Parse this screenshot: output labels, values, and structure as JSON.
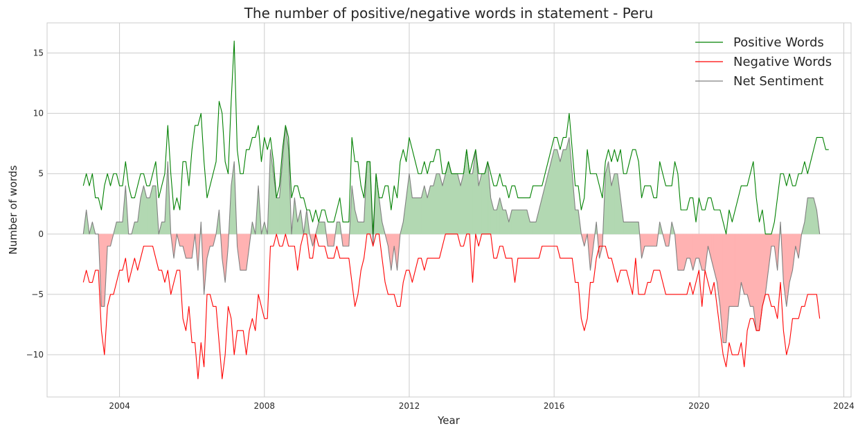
{
  "chart_data": {
    "type": "line",
    "title": "The number of positive/negative words in statement - Peru",
    "xlabel": "Year",
    "ylabel": "Number of words",
    "xlim": [
      2002.0,
      2024.2
    ],
    "ylim": [
      -13.5,
      17.5
    ],
    "x_ticks": [
      2004,
      2008,
      2012,
      2016,
      2020,
      2024
    ],
    "y_ticks": [
      -10,
      -5,
      0,
      5,
      10,
      15
    ],
    "y_tick_labels": [
      "−10",
      "−5",
      "0",
      "5",
      "10",
      "15"
    ],
    "grid": true,
    "legend_position": "top-right",
    "colors": {
      "positive": "#008000",
      "negative": "#ff0000",
      "net": "#808080",
      "fill_positive": "#b2d8b2",
      "fill_negative": "#ffb2b2"
    },
    "x_start": 2003.0,
    "x_step": 0.0833333,
    "series": [
      {
        "name": "Positive Words",
        "color": "#008000",
        "values": [
          4,
          5,
          4,
          5,
          3,
          3,
          2,
          4,
          5,
          4,
          5,
          5,
          4,
          4,
          6,
          4,
          3,
          3,
          4,
          5,
          5,
          4,
          4,
          5,
          6,
          3,
          4,
          5,
          9,
          5,
          2,
          3,
          2,
          6,
          6,
          4,
          7,
          9,
          9,
          10,
          6,
          3,
          4,
          5,
          6,
          11,
          10,
          6,
          5,
          11,
          16,
          7,
          5,
          5,
          7,
          7,
          8,
          8,
          9,
          6,
          8,
          7,
          8,
          6,
          3,
          4,
          7,
          9,
          8,
          3,
          4,
          4,
          3,
          3,
          2,
          2,
          1,
          2,
          1,
          2,
          2,
          1,
          1,
          1,
          2,
          3,
          1,
          1,
          1,
          8,
          6,
          6,
          4,
          3,
          6,
          6,
          0,
          5,
          3,
          3,
          4,
          4,
          2,
          4,
          3,
          6,
          7,
          6,
          8,
          7,
          6,
          5,
          5,
          6,
          5,
          6,
          6,
          7,
          7,
          5,
          5,
          6,
          5,
          5,
          5,
          5,
          5,
          7,
          5,
          6,
          7,
          5,
          5,
          5,
          6,
          5,
          4,
          4,
          5,
          4,
          4,
          3,
          4,
          4,
          3,
          3,
          3,
          3,
          3,
          4,
          4,
          4,
          4,
          5,
          6,
          7,
          8,
          8,
          7,
          8,
          8,
          10,
          7,
          4,
          4,
          2,
          3,
          7,
          5,
          5,
          5,
          4,
          3,
          6,
          7,
          6,
          7,
          6,
          7,
          5,
          5,
          6,
          7,
          7,
          6,
          3,
          4,
          4,
          4,
          3,
          3,
          6,
          5,
          4,
          4,
          4,
          6,
          5,
          2,
          2,
          2,
          3,
          3,
          1,
          3,
          2,
          2,
          3,
          3,
          2,
          2,
          2,
          1,
          0,
          2,
          1,
          2,
          3,
          4,
          4,
          4,
          5,
          6,
          3,
          1,
          2,
          0,
          0,
          0,
          1,
          3,
          5,
          5,
          4,
          5,
          4,
          4,
          5,
          5,
          6,
          5,
          6,
          7,
          8,
          8,
          8,
          7,
          7
        ]
      },
      {
        "name": "Negative Words",
        "color": "#ff0000",
        "values": [
          -4,
          -3,
          -4,
          -4,
          -3,
          -3,
          -8,
          -10,
          -6,
          -5,
          -5,
          -4,
          -3,
          -3,
          -2,
          -4,
          -3,
          -2,
          -3,
          -2,
          -1,
          -1,
          -1,
          -1,
          -2,
          -3,
          -3,
          -4,
          -3,
          -5,
          -4,
          -3,
          -3,
          -7,
          -8,
          -6,
          -9,
          -9,
          -12,
          -9,
          -11,
          -5,
          -5,
          -6,
          -6,
          -9,
          -12,
          -10,
          -6,
          -7,
          -10,
          -8,
          -8,
          -8,
          -10,
          -8,
          -7,
          -8,
          -5,
          -6,
          -7,
          -7,
          -1,
          -1,
          0,
          -1,
          -1,
          0,
          -1,
          -1,
          -1,
          -3,
          -1,
          0,
          0,
          -2,
          -2,
          0,
          -1,
          -1,
          -1,
          -2,
          -2,
          -2,
          -1,
          -2,
          -2,
          -2,
          -2,
          -4,
          -6,
          -5,
          -3,
          -2,
          0,
          0,
          -1,
          0,
          0,
          -2,
          -4,
          -5,
          -5,
          -5,
          -6,
          -6,
          -4,
          -3,
          -3,
          -4,
          -3,
          -2,
          -2,
          -3,
          -2,
          -2,
          -2,
          -2,
          -2,
          -1,
          0,
          0,
          0,
          0,
          0,
          -1,
          -1,
          0,
          0,
          -4,
          0,
          -1,
          0,
          0,
          0,
          0,
          -2,
          -2,
          -1,
          -1,
          -2,
          -2,
          -2,
          -4,
          -2,
          -2,
          -2,
          -2,
          -2,
          -2,
          -2,
          -2,
          -1,
          -1,
          -1,
          -1,
          -1,
          -1,
          -2,
          -2,
          -2,
          -2,
          -2,
          -4,
          -4,
          -7,
          -8,
          -7,
          -4,
          -4,
          -2,
          -1,
          -1,
          -1,
          -2,
          -2,
          -3,
          -4,
          -3,
          -3,
          -3,
          -4,
          -5,
          -2,
          -5,
          -5,
          -5,
          -4,
          -4,
          -3,
          -3,
          -3,
          -4,
          -5,
          -5,
          -5,
          -5,
          -5,
          -5,
          -5,
          -5,
          -4,
          -5,
          -4,
          -3,
          -6,
          -3,
          -4,
          -5,
          -4,
          -6,
          -8,
          -10,
          -11,
          -9,
          -10,
          -10,
          -10,
          -9,
          -11,
          -8,
          -7,
          -7,
          -8,
          -8,
          -6,
          -5,
          -5,
          -6,
          -6,
          -7,
          -4,
          -8,
          -10,
          -9,
          -7,
          -7,
          -7,
          -6,
          -6,
          -5,
          -5,
          -5,
          -5,
          -7
        ]
      },
      {
        "name": "Net Sentiment",
        "color": "#808080",
        "values": [
          0,
          2,
          0,
          1,
          0,
          0,
          -6,
          -6,
          -1,
          -1,
          0,
          1,
          1,
          1,
          4,
          0,
          0,
          1,
          1,
          3,
          4,
          3,
          3,
          4,
          4,
          0,
          1,
          1,
          6,
          0,
          -2,
          0,
          -1,
          -1,
          -2,
          -2,
          -2,
          0,
          -3,
          1,
          -5,
          -2,
          -1,
          -1,
          0,
          2,
          -2,
          -4,
          -1,
          4,
          6,
          -1,
          -3,
          -3,
          -3,
          -1,
          1,
          0,
          4,
          0,
          1,
          0,
          7,
          5,
          3,
          3,
          6,
          9,
          7,
          0,
          3,
          1,
          2,
          0,
          2,
          0,
          -1,
          0,
          1,
          1,
          1,
          -1,
          -1,
          -1,
          1,
          1,
          -1,
          -1,
          -1,
          4,
          2,
          1,
          1,
          1,
          6,
          6,
          -1,
          5,
          3,
          1,
          0,
          -1,
          -3,
          -1,
          -3,
          0,
          1,
          3,
          5,
          3,
          3,
          3,
          3,
          4,
          3,
          4,
          4,
          5,
          5,
          4,
          5,
          6,
          5,
          5,
          5,
          4,
          5,
          7,
          5,
          5,
          7,
          4,
          5,
          5,
          6,
          3,
          2,
          2,
          3,
          2,
          2,
          1,
          2,
          2,
          2,
          2,
          2,
          2,
          1,
          1,
          1,
          2,
          3,
          4,
          5,
          6,
          7,
          7,
          6,
          7,
          7,
          8,
          5,
          2,
          2,
          0,
          -1,
          0,
          -3,
          -1,
          1,
          -2,
          -1,
          5,
          6,
          4,
          5,
          5,
          3,
          1,
          1,
          1,
          1,
          1,
          1,
          -2,
          -1,
          -1,
          -1,
          -1,
          -1,
          1,
          0,
          -1,
          -1,
          1,
          0,
          -3,
          -3,
          -3,
          -2,
          -2,
          -3,
          -2,
          -2,
          -3,
          -3,
          -1,
          -2,
          -3,
          -4,
          -6,
          -9,
          -9,
          -6,
          -6,
          -6,
          -6,
          -4,
          -5,
          -5,
          -6,
          -6,
          -8,
          -8,
          -6,
          -5,
          -3,
          -1,
          -1,
          -3,
          1,
          -4,
          -6,
          -4,
          -3,
          -1,
          -2,
          0,
          1,
          3,
          3,
          3,
          2,
          0
        ]
      }
    ]
  }
}
